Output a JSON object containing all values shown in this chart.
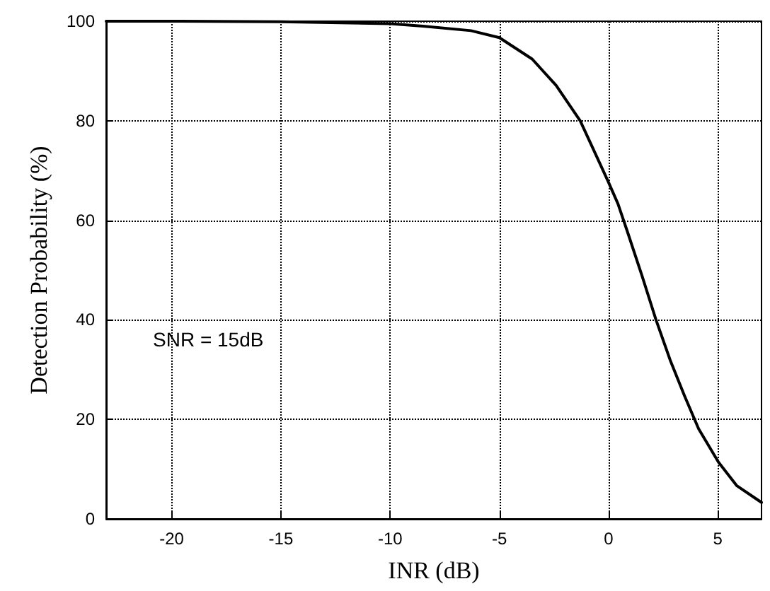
{
  "chart_data": {
    "type": "line",
    "xlabel": "INR (dB)",
    "ylabel": "Detection Probability (%)",
    "annotations": [
      "SNR = 15dB"
    ],
    "x": [
      -23,
      -20,
      -15,
      -10,
      -8.5,
      -6.3,
      -5,
      -3.5,
      -2.4,
      -1.3,
      -0.65,
      0,
      0.43,
      0.87,
      1.52,
      2.17,
      2.82,
      3.47,
      4.12,
      5.03,
      5.86,
      7
    ],
    "series": [
      {
        "color": "#000000",
        "values": [
          100,
          100,
          99.9,
          99.5,
          99,
          98.1,
          96.7,
          92.4,
          87.1,
          80,
          73.8,
          67.6,
          63.3,
          57.6,
          49,
          40,
          31.9,
          24.8,
          18.1,
          11.4,
          6.7,
          3.3
        ]
      }
    ],
    "xlim": [
      -23,
      7
    ],
    "xticks": [
      -20,
      -15,
      -10,
      -5,
      0,
      5
    ],
    "ylim": [
      0,
      100
    ],
    "yticks": [
      0,
      20,
      40,
      60,
      80,
      100
    ],
    "grid": true,
    "marker": "none",
    "line_style": "solid"
  }
}
